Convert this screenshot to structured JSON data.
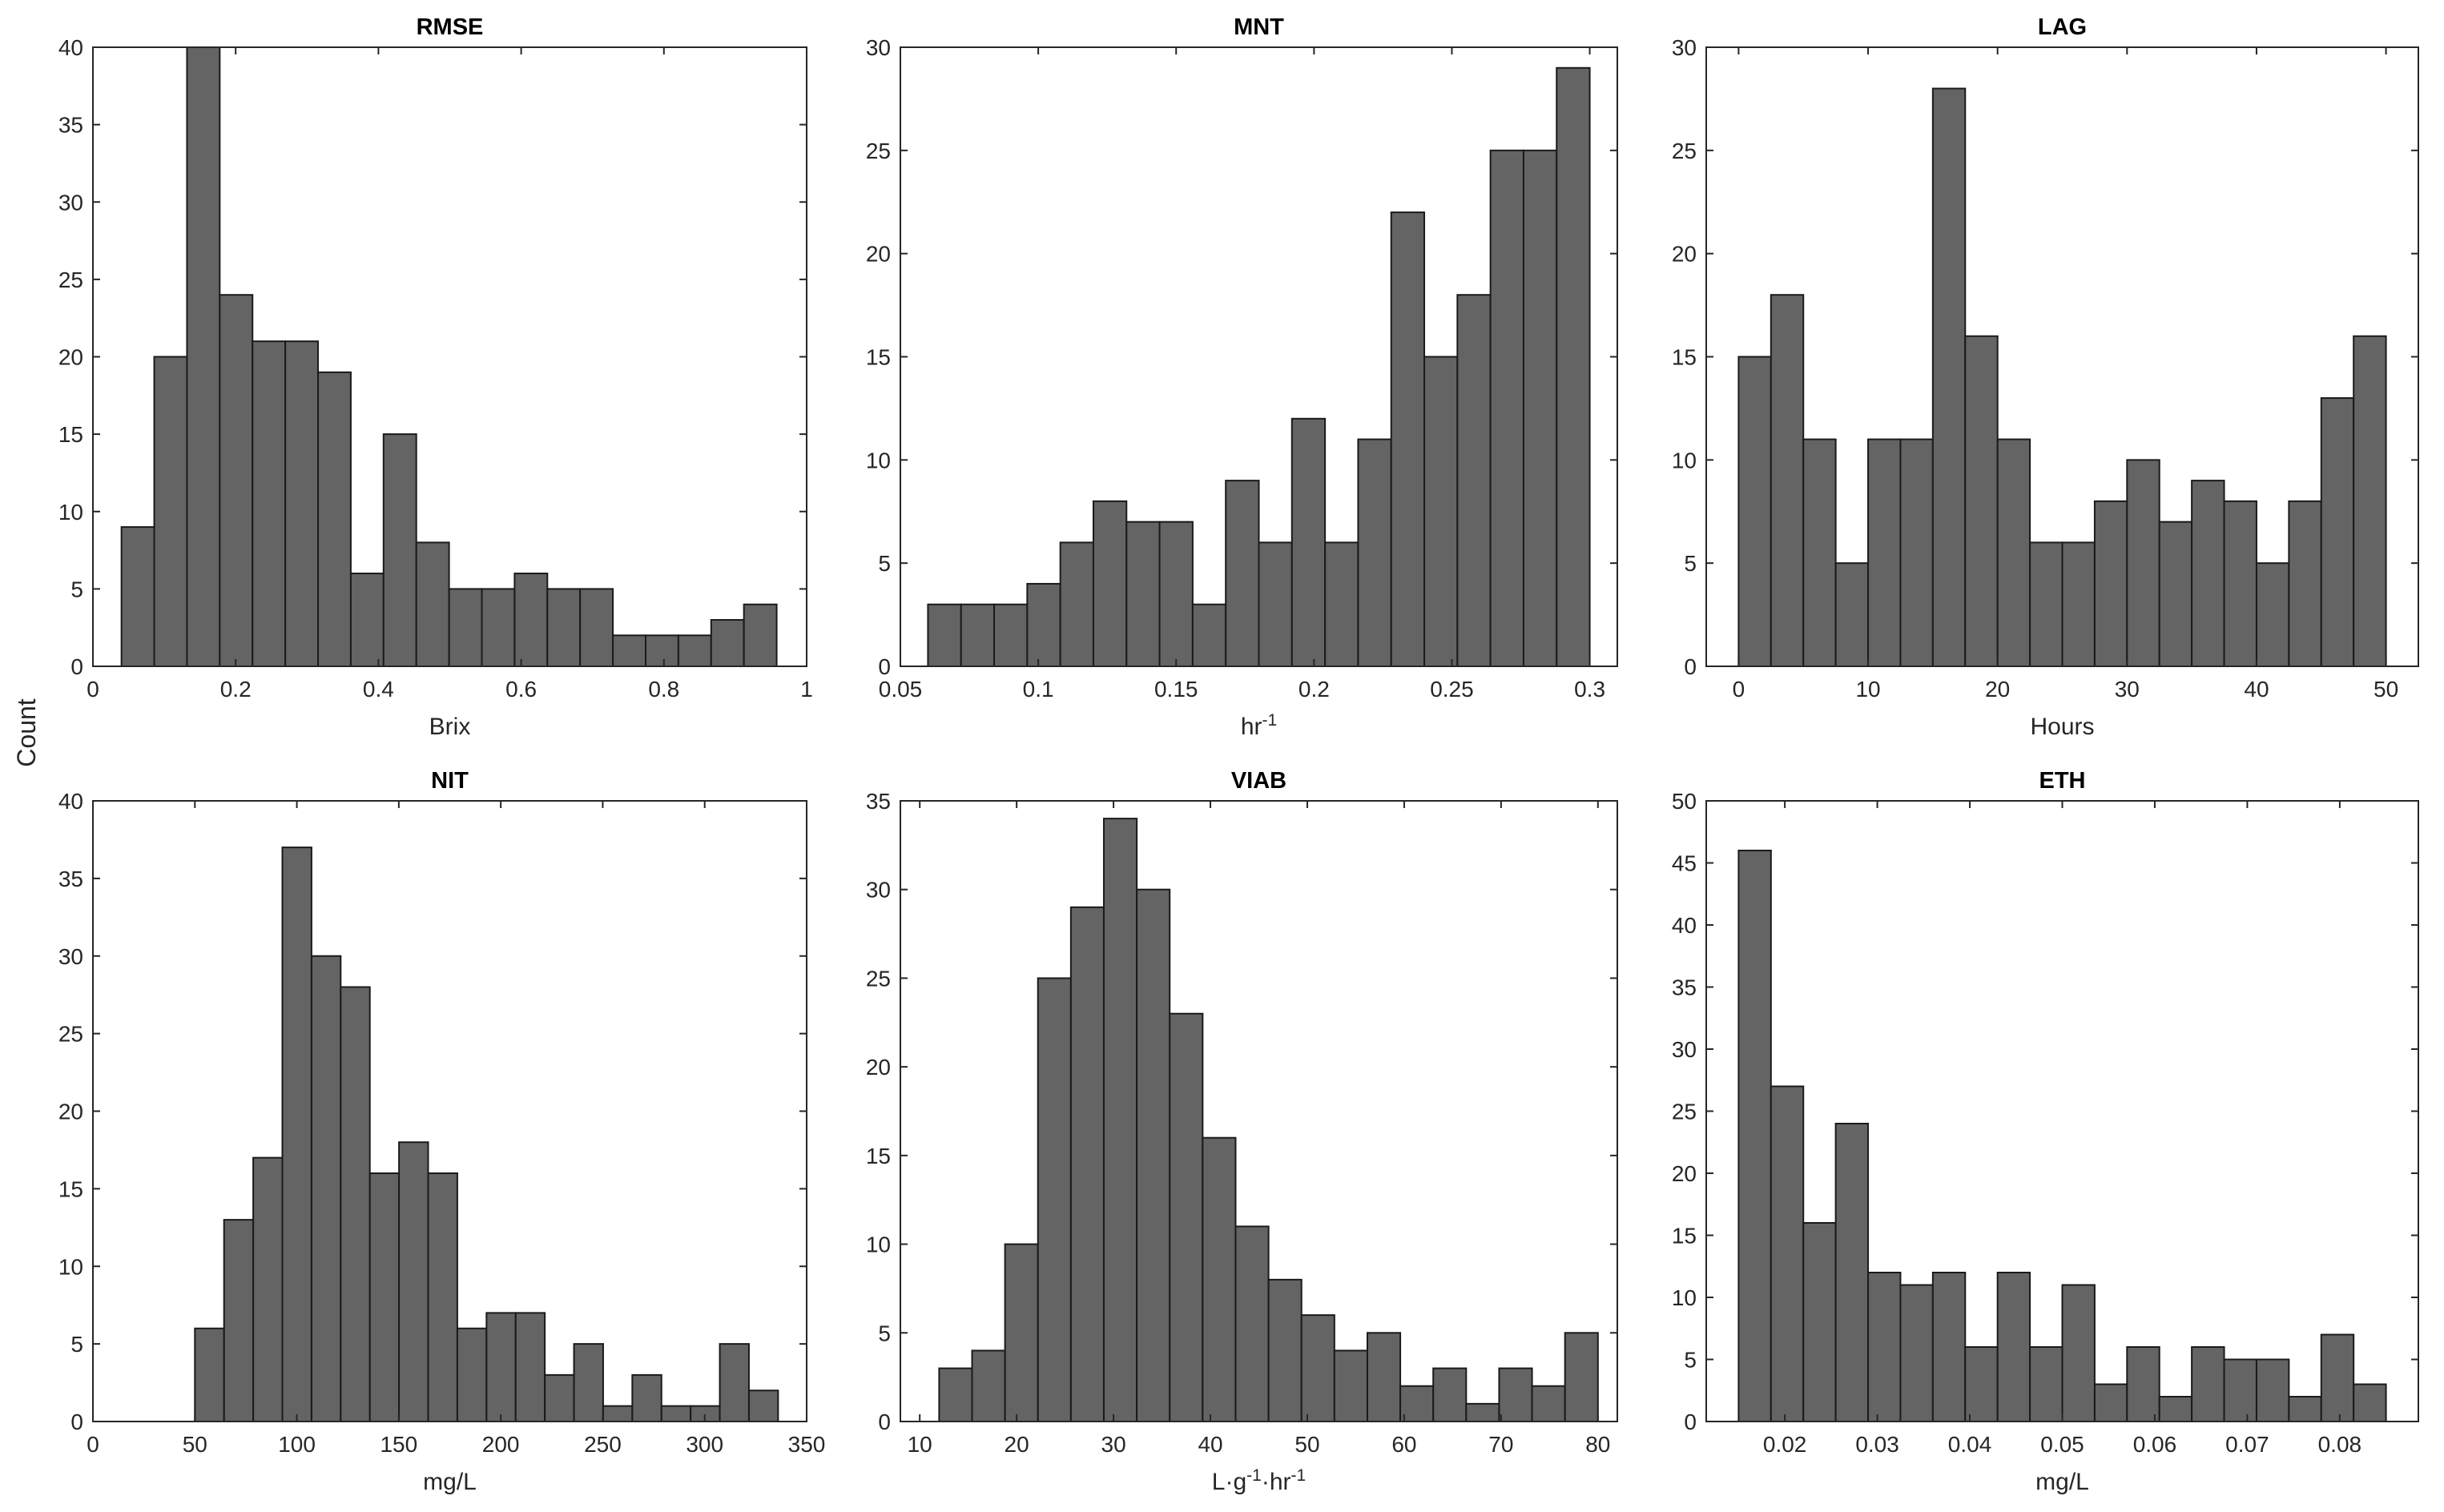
{
  "figure": {
    "ylabel": "Count"
  },
  "chart_data": [
    {
      "type": "bar",
      "id": "rmse",
      "title": "RMSE",
      "xlabel": "Brix",
      "xlim": [
        0,
        1
      ],
      "ylim": [
        0,
        40
      ],
      "xticks": [
        0,
        0.2,
        0.4,
        0.6,
        0.8,
        1
      ],
      "xtick_labels": [
        "0",
        "0.2",
        "0.4",
        "0.6",
        "0.8",
        "1"
      ],
      "yticks": [
        0,
        5,
        10,
        15,
        20,
        25,
        30,
        35,
        40
      ],
      "ytick_labels": [
        "0",
        "5",
        "10",
        "15",
        "20",
        "25",
        "30",
        "35",
        "40"
      ],
      "bin_start": 0.04,
      "bin_width": 0.0459,
      "values": [
        9,
        20,
        40,
        24,
        21,
        21,
        19,
        6,
        15,
        8,
        5,
        5,
        6,
        5,
        5,
        2,
        2,
        2,
        3,
        4
      ]
    },
    {
      "type": "bar",
      "id": "mnt",
      "title": "MNT",
      "xlabel": "hr",
      "xlabel_sup": "-1",
      "xlim": [
        0.05,
        0.31
      ],
      "ylim": [
        0,
        30
      ],
      "xticks": [
        0.05,
        0.1,
        0.15,
        0.2,
        0.25,
        0.3
      ],
      "xtick_labels": [
        "0.05",
        "0.1",
        "0.15",
        "0.2",
        "0.25",
        "0.3"
      ],
      "yticks": [
        0,
        5,
        10,
        15,
        20,
        25,
        30
      ],
      "ytick_labels": [
        "0",
        "5",
        "10",
        "15",
        "20",
        "25",
        "30"
      ],
      "bin_start": 0.06,
      "bin_width": 0.012,
      "values": [
        3,
        3,
        3,
        4,
        6,
        8,
        7,
        7,
        3,
        9,
        6,
        12,
        6,
        11,
        22,
        15,
        18,
        25,
        25,
        29
      ]
    },
    {
      "type": "bar",
      "id": "lag",
      "title": "LAG",
      "xlabel": "Hours",
      "xlim": [
        -2.5,
        52.5
      ],
      "ylim": [
        0,
        30
      ],
      "xticks": [
        0,
        10,
        20,
        30,
        40,
        50
      ],
      "xtick_labels": [
        "0",
        "10",
        "20",
        "30",
        "40",
        "50"
      ],
      "yticks": [
        0,
        5,
        10,
        15,
        20,
        25,
        30
      ],
      "ytick_labels": [
        "0",
        "5",
        "10",
        "15",
        "20",
        "25",
        "30"
      ],
      "bin_start": 0,
      "bin_width": 2.5,
      "values": [
        15,
        18,
        11,
        5,
        11,
        11,
        28,
        16,
        11,
        6,
        6,
        8,
        10,
        7,
        9,
        8,
        5,
        8,
        13,
        16
      ]
    },
    {
      "type": "bar",
      "id": "nit",
      "title": "NIT",
      "xlabel": "mg/L",
      "xlim": [
        0,
        350
      ],
      "ylim": [
        0,
        40
      ],
      "xticks": [
        0,
        50,
        100,
        150,
        200,
        250,
        300,
        350
      ],
      "xtick_labels": [
        "0",
        "50",
        "100",
        "150",
        "200",
        "250",
        "300",
        "350"
      ],
      "yticks": [
        0,
        5,
        10,
        15,
        20,
        25,
        30,
        35,
        40
      ],
      "ytick_labels": [
        "0",
        "5",
        "10",
        "15",
        "20",
        "25",
        "30",
        "35",
        "40"
      ],
      "bin_start": 50,
      "bin_width": 14.3,
      "values": [
        6,
        13,
        17,
        37,
        30,
        28,
        16,
        18,
        16,
        6,
        7,
        7,
        3,
        5,
        1,
        3,
        1,
        1,
        5,
        2
      ]
    },
    {
      "type": "bar",
      "id": "viab",
      "title": "VIAB",
      "xlabel": "L·g-1·hr-1",
      "xlabel_parts": [
        "L·g",
        "-1",
        "·hr",
        "-1"
      ],
      "xlim": [
        8,
        82
      ],
      "ylim": [
        0,
        35
      ],
      "xticks": [
        10,
        20,
        30,
        40,
        50,
        60,
        70,
        80
      ],
      "xtick_labels": [
        "10",
        "20",
        "30",
        "40",
        "50",
        "60",
        "70",
        "80"
      ],
      "yticks": [
        0,
        5,
        10,
        15,
        20,
        25,
        30,
        35
      ],
      "ytick_labels": [
        "0",
        "5",
        "10",
        "15",
        "20",
        "25",
        "30",
        "35"
      ],
      "bin_start": 12,
      "bin_width": 3.4,
      "values": [
        3,
        4,
        10,
        25,
        29,
        34,
        30,
        23,
        16,
        11,
        8,
        6,
        4,
        5,
        2,
        3,
        1,
        3,
        2,
        5
      ]
    },
    {
      "type": "bar",
      "id": "eth",
      "title": "ETH",
      "xlabel": "mg/L",
      "xlim": [
        0.0115,
        0.0885
      ],
      "ylim": [
        0,
        50
      ],
      "xticks": [
        0.02,
        0.03,
        0.04,
        0.05,
        0.06,
        0.07,
        0.08
      ],
      "xtick_labels": [
        "0.02",
        "0.03",
        "0.04",
        "0.05",
        "0.06",
        "0.07",
        "0.08"
      ],
      "yticks": [
        0,
        5,
        10,
        15,
        20,
        25,
        30,
        35,
        40,
        45,
        50
      ],
      "ytick_labels": [
        "0",
        "5",
        "10",
        "15",
        "20",
        "25",
        "30",
        "35",
        "40",
        "45",
        "50"
      ],
      "bin_start": 0.015,
      "bin_width": 0.0035,
      "values": [
        46,
        27,
        16,
        24,
        12,
        11,
        12,
        6,
        12,
        6,
        11,
        3,
        6,
        2,
        6,
        5,
        5,
        2,
        7,
        3
      ]
    }
  ]
}
